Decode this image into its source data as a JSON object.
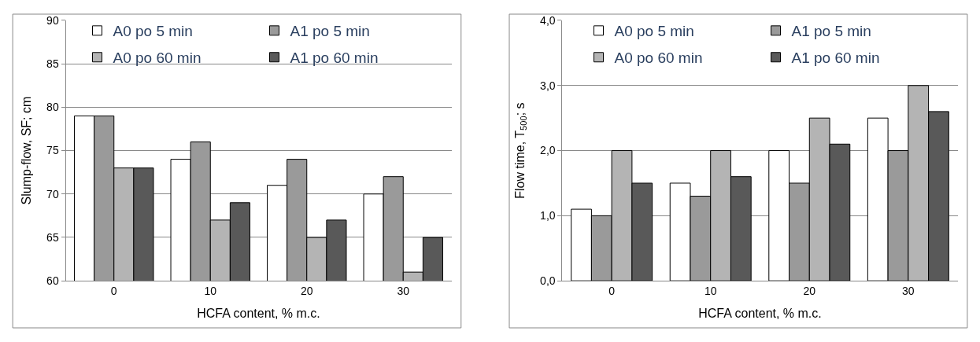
{
  "chart_data": [
    {
      "type": "bar",
      "categories": [
        "0",
        "10",
        "20",
        "30"
      ],
      "xlabel": "HCFA content, % m.c.",
      "ylabel": "Slump-flow, SF; cm",
      "ylim": [
        60,
        90
      ],
      "yticks": [
        60,
        65,
        70,
        75,
        80,
        85,
        90
      ],
      "grid": "y",
      "legend": "top",
      "series": [
        {
          "name": "A0 po 5 min",
          "color": "#ffffff",
          "values": [
            79,
            74,
            71,
            70
          ]
        },
        {
          "name": "A1 po 5 min",
          "color": "#9a9a9a",
          "values": [
            79,
            76,
            74,
            72
          ]
        },
        {
          "name": "A0 po 60 min",
          "color": "#b4b4b4",
          "values": [
            73,
            67,
            65,
            61
          ]
        },
        {
          "name": "A1 po 60 min",
          "color": "#595959",
          "values": [
            73,
            69,
            67,
            65
          ]
        }
      ]
    },
    {
      "type": "bar",
      "categories": [
        "0",
        "10",
        "20",
        "30"
      ],
      "xlabel": "HCFA content, % m.c.",
      "ylabel": "Flow time, T$_{500}$; s",
      "ylim": [
        0,
        4
      ],
      "yticks": [
        {
          "value": 0,
          "label": "0,0"
        },
        {
          "value": 1,
          "label": "1,0"
        },
        {
          "value": 2,
          "label": "2,0"
        },
        {
          "value": 3,
          "label": "3,0"
        },
        {
          "value": 4,
          "label": "4,0"
        }
      ],
      "grid": "y",
      "legend": "top",
      "series": [
        {
          "name": "A0 po 5 min",
          "color": "#ffffff",
          "values": [
            1.1,
            1.5,
            2.0,
            2.5
          ]
        },
        {
          "name": "A1 po 5 min",
          "color": "#9a9a9a",
          "values": [
            1.0,
            1.3,
            1.5,
            2.0
          ]
        },
        {
          "name": "A0 po 60 min",
          "color": "#b4b4b4",
          "values": [
            2.0,
            2.0,
            2.5,
            3.0
          ]
        },
        {
          "name": "A1 po 60 min",
          "color": "#595959",
          "values": [
            1.5,
            1.6,
            2.1,
            2.6
          ]
        }
      ]
    }
  ]
}
